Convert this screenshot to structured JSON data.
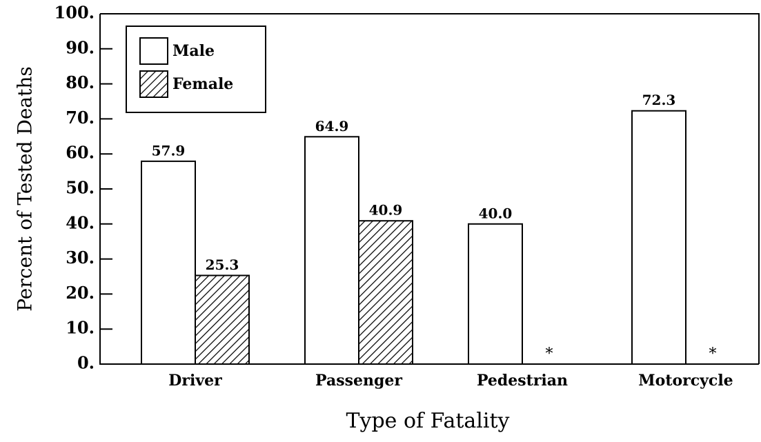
{
  "chart_data": {
    "type": "bar",
    "xlabel": "Type of Fatality",
    "ylabel": "Percent of Tested Deaths",
    "categories": [
      "Driver",
      "Passenger",
      "Pedestrian",
      "Motorcycle"
    ],
    "series": [
      {
        "name": "Male",
        "color": "#ffffff",
        "values": [
          57.9,
          64.9,
          40.0,
          72.3
        ],
        "value_labels": [
          "57.9",
          "64.9",
          "40.0",
          "72.3"
        ]
      },
      {
        "name": "Female",
        "color": "hatch",
        "values": [
          25.3,
          40.9,
          null,
          null
        ],
        "value_labels": [
          "25.3",
          "40.9",
          "*",
          "*"
        ]
      }
    ],
    "ylim": [
      0,
      100
    ],
    "yticks": [
      {
        "value": 0,
        "label": "0."
      },
      {
        "value": 10,
        "label": "10."
      },
      {
        "value": 20,
        "label": "20."
      },
      {
        "value": 30,
        "label": "30."
      },
      {
        "value": 40,
        "label": "40."
      },
      {
        "value": 50,
        "label": "50."
      },
      {
        "value": 60,
        "label": "60."
      },
      {
        "value": 70,
        "label": "70."
      },
      {
        "value": 80,
        "label": "80."
      },
      {
        "value": 90,
        "label": "90."
      },
      {
        "value": 100,
        "label": "100."
      }
    ],
    "legend": "upper left"
  }
}
